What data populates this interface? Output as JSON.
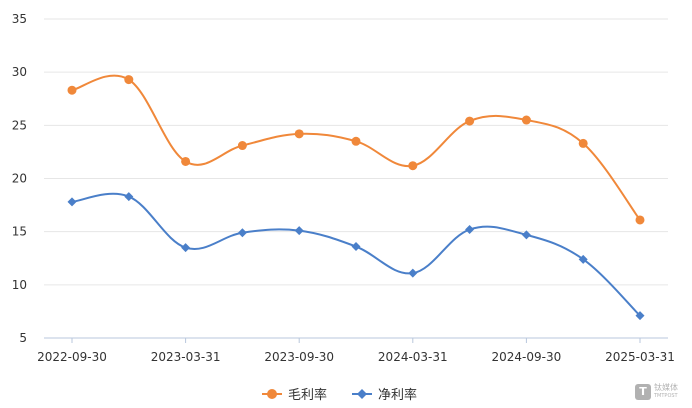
{
  "chart_data": {
    "type": "line",
    "title": "",
    "xlabel": "",
    "ylabel": "",
    "x_tick_labels": [
      "2022-09-30",
      "2023-03-31",
      "2023-09-30",
      "2024-03-31",
      "2024-09-30",
      "2025-03-31"
    ],
    "y_tick_labels": [
      "5",
      "10",
      "15",
      "20",
      "25",
      "30",
      "35"
    ],
    "ylim": [
      5,
      35
    ],
    "grid": "horizontal",
    "legend_position": "bottom-center",
    "series": [
      {
        "name": "毛利率",
        "color": "#f0883a",
        "marker": "circle",
        "points": [
          {
            "x": "2022-09-30",
            "y": 28.3
          },
          {
            "x": "2022-12-31",
            "y": 29.3
          },
          {
            "x": "2023-03-31",
            "y": 21.6
          },
          {
            "x": "2023-06-30",
            "y": 23.1
          },
          {
            "x": "2023-09-30",
            "y": 24.2
          },
          {
            "x": "2023-12-31",
            "y": 23.5
          },
          {
            "x": "2024-03-31",
            "y": 21.2
          },
          {
            "x": "2024-06-30",
            "y": 25.4
          },
          {
            "x": "2024-09-30",
            "y": 25.5
          },
          {
            "x": "2024-12-31",
            "y": 23.3
          },
          {
            "x": "2025-03-31",
            "y": 16.1
          }
        ]
      },
      {
        "name": "净利率",
        "color": "#4a7fc9",
        "marker": "diamond",
        "points": [
          {
            "x": "2022-09-30",
            "y": 17.8
          },
          {
            "x": "2022-12-31",
            "y": 18.3
          },
          {
            "x": "2023-03-31",
            "y": 13.5
          },
          {
            "x": "2023-06-30",
            "y": 14.9
          },
          {
            "x": "2023-09-30",
            "y": 15.1
          },
          {
            "x": "2023-12-31",
            "y": 13.6
          },
          {
            "x": "2024-03-31",
            "y": 11.1
          },
          {
            "x": "2024-06-30",
            "y": 15.2
          },
          {
            "x": "2024-09-30",
            "y": 14.7
          },
          {
            "x": "2024-12-31",
            "y": 12.4
          },
          {
            "x": "2025-03-31",
            "y": 7.1
          }
        ]
      }
    ]
  },
  "watermark": {
    "mark": "T",
    "cn": "钛媒体",
    "en": "TMTPOST"
  }
}
